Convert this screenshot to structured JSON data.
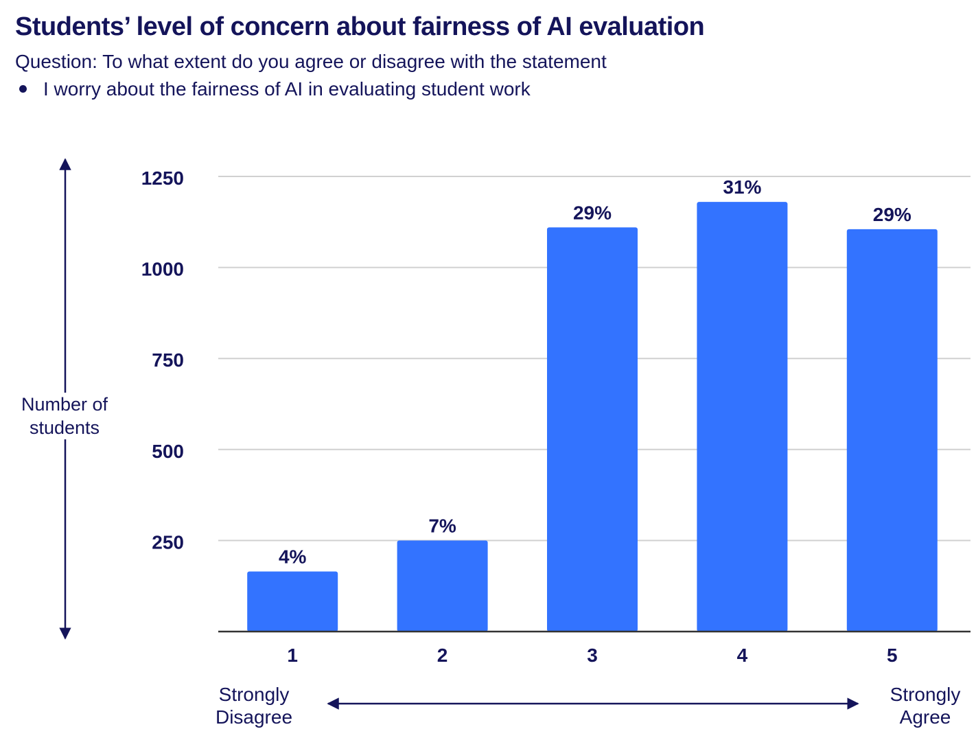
{
  "title": "Students’ level of concern about fairness of AI evaluation",
  "subtitle": "Question: To what extent do you agree or disagree with the statement",
  "statement": "I worry about the fairness of AI in evaluating student work",
  "colors": {
    "bar": "#3373ff",
    "text": "#14145a",
    "grid": "#d0d0d0",
    "axis": "#333333"
  },
  "chart_data": {
    "type": "bar",
    "categories": [
      "1",
      "2",
      "3",
      "4",
      "5"
    ],
    "values": [
      165,
      250,
      1110,
      1180,
      1105
    ],
    "data_labels": [
      "4%",
      "7%",
      "29%",
      "31%",
      "29%"
    ],
    "ylabel": "Number of students",
    "yticks": [
      "250",
      "500",
      "750",
      "1000",
      "1250"
    ],
    "ylim": [
      0,
      1250
    ],
    "grid": true,
    "scale_left_label": "Strongly Disagree",
    "scale_right_label": "Strongly Agree"
  }
}
